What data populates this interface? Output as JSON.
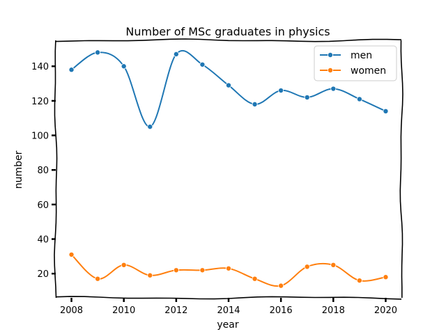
{
  "chart_data": {
    "type": "line",
    "title": "Number of MSc graduates in physics",
    "xlabel": "year",
    "ylabel": "number",
    "xlim": [
      2007.4,
      2020.6
    ],
    "ylim": [
      6,
      155
    ],
    "xticks": [
      2008,
      2010,
      2012,
      2014,
      2016,
      2018,
      2020
    ],
    "yticks": [
      20,
      40,
      60,
      80,
      100,
      120,
      140
    ],
    "grid": false,
    "legend_position": "top-right",
    "x": [
      2008,
      2009,
      2010,
      2011,
      2012,
      2013,
      2014,
      2015,
      2016,
      2017,
      2018,
      2019,
      2020
    ],
    "series": [
      {
        "name": "men",
        "color": "#1f77b4",
        "values": [
          138,
          148,
          140,
          105,
          147,
          141,
          129,
          118,
          126,
          122,
          127,
          121,
          114
        ]
      },
      {
        "name": "women",
        "color": "#ff7f0e",
        "values": [
          31,
          17,
          25,
          19,
          22,
          22,
          23,
          17,
          13,
          24,
          25,
          16,
          18
        ]
      }
    ]
  }
}
